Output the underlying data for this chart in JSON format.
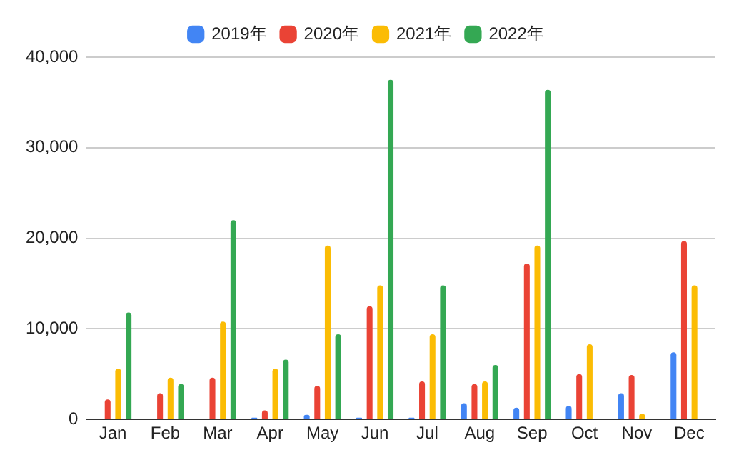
{
  "chart_data": {
    "type": "bar",
    "categories": [
      "Jan",
      "Feb",
      "Mar",
      "Apr",
      "May",
      "Jun",
      "Jul",
      "Aug",
      "Sep",
      "Oct",
      "Nov",
      "Dec"
    ],
    "series": [
      {
        "name": "2019年",
        "color": "#4285f4",
        "values": [
          null,
          null,
          null,
          200,
          500,
          200,
          200,
          1800,
          1300,
          1500,
          2900,
          7400
        ]
      },
      {
        "name": "2020年",
        "color": "#ea4335",
        "values": [
          2200,
          2900,
          4600,
          1000,
          3700,
          12500,
          4200,
          3900,
          17200,
          5000,
          4900,
          19700
        ]
      },
      {
        "name": "2021年",
        "color": "#fbbc04",
        "values": [
          5600,
          4600,
          10800,
          5600,
          19200,
          14800,
          9400,
          4200,
          19200,
          8300,
          600,
          14800
        ]
      },
      {
        "name": "2022年",
        "color": "#34a853",
        "values": [
          11800,
          3900,
          22000,
          6600,
          9400,
          37500,
          14800,
          6000,
          36400,
          null,
          null,
          null
        ]
      }
    ],
    "ylim": [
      0,
      40000
    ],
    "yticks": [
      0,
      {
        "value": 10000,
        "label": "10,000"
      },
      {
        "value": 20000,
        "label": "20,000"
      },
      {
        "value": 30000,
        "label": "30,000"
      },
      {
        "value": 40000,
        "label": "40,000"
      }
    ],
    "grid": "y",
    "legend": "top"
  }
}
